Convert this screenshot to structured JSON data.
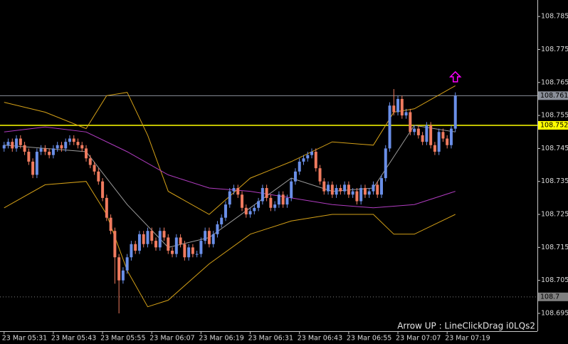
{
  "chart_data": {
    "type": "candlestick",
    "up_color": "#6a8fe8",
    "down_color": "#f07b5f",
    "xlim": [
      -1,
      130
    ],
    "ylim": [
      108.6896,
      108.79
    ],
    "yticks": [
      108.785,
      108.775,
      108.765,
      108.755,
      108.745,
      108.735,
      108.725,
      108.715,
      108.705,
      108.695
    ],
    "xticks": [
      {
        "value": 0,
        "label": "23 Mar 05:31"
      },
      {
        "value": 12,
        "label": "23 Mar 05:43"
      },
      {
        "value": 24,
        "label": "23 Mar 05:55"
      },
      {
        "value": 36,
        "label": "23 Mar 06:07"
      },
      {
        "value": 48,
        "label": "23 Mar 06:19"
      },
      {
        "value": 60,
        "label": "23 Mar 06:31"
      },
      {
        "value": 72,
        "label": "23 Mar 06:43"
      },
      {
        "value": 84,
        "label": "23 Mar 06:55"
      },
      {
        "value": 96,
        "label": "23 Mar 07:07"
      },
      {
        "value": 108,
        "label": "23 Mar 07:19"
      }
    ],
    "candles": [
      [
        108.745,
        108.747,
        108.744,
        108.746
      ],
      [
        108.746,
        108.748,
        108.745,
        108.747
      ],
      [
        108.747,
        108.748,
        108.744,
        108.745
      ],
      [
        108.745,
        108.749,
        108.744,
        108.748
      ],
      [
        108.748,
        108.749,
        108.745,
        108.746
      ],
      [
        108.746,
        108.747,
        108.743,
        108.744
      ],
      [
        108.744,
        108.745,
        108.74,
        108.741
      ],
      [
        108.741,
        108.742,
        108.736,
        108.737
      ],
      [
        108.737,
        108.745,
        108.736,
        108.744
      ],
      [
        108.744,
        108.746,
        108.743,
        108.745
      ],
      [
        108.745,
        108.746,
        108.743,
        108.744
      ],
      [
        108.744,
        108.745,
        108.742,
        108.743
      ],
      [
        108.743,
        108.746,
        108.742,
        108.745
      ],
      [
        108.745,
        108.747,
        108.744,
        108.746
      ],
      [
        108.746,
        108.747,
        108.744,
        108.745
      ],
      [
        108.745,
        108.748,
        108.744,
        108.747
      ],
      [
        108.747,
        108.749,
        108.746,
        108.748
      ],
      [
        108.748,
        108.749,
        108.746,
        108.747
      ],
      [
        108.747,
        108.748,
        108.745,
        108.746
      ],
      [
        108.746,
        108.747,
        108.744,
        108.745
      ],
      [
        108.745,
        108.746,
        108.741,
        108.742
      ],
      [
        108.742,
        108.743,
        108.739,
        108.74
      ],
      [
        108.74,
        108.741,
        108.737,
        108.738
      ],
      [
        108.738,
        108.739,
        108.734,
        108.735
      ],
      [
        108.735,
        108.736,
        108.729,
        108.73
      ],
      [
        108.73,
        108.731,
        108.723,
        108.724
      ],
      [
        108.724,
        108.725,
        108.719,
        108.72
      ],
      [
        108.72,
        108.721,
        108.704,
        108.712
      ],
      [
        108.712,
        108.713,
        108.695,
        108.705
      ],
      [
        108.705,
        108.709,
        108.704,
        108.708
      ],
      [
        108.708,
        108.713,
        108.707,
        108.712
      ],
      [
        108.712,
        108.717,
        108.711,
        108.716
      ],
      [
        108.716,
        108.717,
        108.713,
        108.714
      ],
      [
        108.714,
        108.72,
        108.713,
        108.719
      ],
      [
        108.719,
        108.72,
        108.715,
        108.716
      ],
      [
        108.716,
        108.721,
        108.715,
        108.72
      ],
      [
        108.72,
        108.721,
        108.716,
        108.717
      ],
      [
        108.717,
        108.718,
        108.714,
        108.715
      ],
      [
        108.715,
        108.721,
        108.714,
        108.72
      ],
      [
        108.72,
        108.721,
        108.717,
        108.718
      ],
      [
        108.718,
        108.719,
        108.713,
        108.714
      ],
      [
        108.714,
        108.715,
        108.712,
        108.713
      ],
      [
        108.713,
        108.719,
        108.712,
        108.718
      ],
      [
        108.718,
        108.719,
        108.715,
        108.716
      ],
      [
        108.716,
        108.717,
        108.711,
        108.712
      ],
      [
        108.712,
        108.716,
        108.711,
        108.715
      ],
      [
        108.715,
        108.716,
        108.712,
        108.713
      ],
      [
        108.713,
        108.714,
        108.712,
        108.713
      ],
      [
        108.713,
        108.718,
        108.712,
        108.717
      ],
      [
        108.717,
        108.721,
        108.716,
        108.72
      ],
      [
        108.72,
        108.721,
        108.715,
        108.716
      ],
      [
        108.716,
        108.72,
        108.715,
        108.719
      ],
      [
        108.719,
        108.723,
        108.718,
        108.722
      ],
      [
        108.722,
        108.725,
        108.721,
        108.724
      ],
      [
        108.724,
        108.729,
        108.723,
        108.728
      ],
      [
        108.728,
        108.733,
        108.727,
        108.732
      ],
      [
        108.732,
        108.734,
        108.731,
        108.733
      ],
      [
        108.733,
        108.734,
        108.73,
        108.731
      ],
      [
        108.731,
        108.732,
        108.726,
        108.727
      ],
      [
        108.727,
        108.728,
        108.724,
        108.725
      ],
      [
        108.725,
        108.727,
        108.724,
        108.726
      ],
      [
        108.726,
        108.728,
        108.725,
        108.727
      ],
      [
        108.727,
        108.73,
        108.726,
        108.729
      ],
      [
        108.729,
        108.734,
        108.728,
        108.733
      ],
      [
        108.733,
        108.734,
        108.729,
        108.73
      ],
      [
        108.73,
        108.731,
        108.726,
        108.727
      ],
      [
        108.727,
        108.729,
        108.726,
        108.728
      ],
      [
        108.728,
        108.732,
        108.727,
        108.731
      ],
      [
        108.731,
        108.732,
        108.727,
        108.728
      ],
      [
        108.728,
        108.731,
        108.727,
        108.73
      ],
      [
        108.73,
        108.736,
        108.729,
        108.735
      ],
      [
        108.735,
        108.739,
        108.734,
        108.738
      ],
      [
        108.738,
        108.742,
        108.737,
        108.741
      ],
      [
        108.741,
        108.743,
        108.74,
        108.742
      ],
      [
        108.742,
        108.744,
        108.741,
        108.743
      ],
      [
        108.743,
        108.745,
        108.742,
        108.744
      ],
      [
        108.744,
        108.745,
        108.738,
        108.739
      ],
      [
        108.739,
        108.74,
        108.734,
        108.735
      ],
      [
        108.735,
        108.736,
        108.731,
        108.732
      ],
      [
        108.732,
        108.735,
        108.731,
        108.734
      ],
      [
        108.734,
        108.735,
        108.73,
        108.731
      ],
      [
        108.731,
        108.734,
        108.73,
        108.733
      ],
      [
        108.733,
        108.734,
        108.731,
        108.732
      ],
      [
        108.732,
        108.735,
        108.731,
        108.734
      ],
      [
        108.734,
        108.735,
        108.73,
        108.731
      ],
      [
        108.731,
        108.733,
        108.73,
        108.732
      ],
      [
        108.732,
        108.733,
        108.728,
        108.729
      ],
      [
        108.729,
        108.734,
        108.728,
        108.733
      ],
      [
        108.733,
        108.734,
        108.73,
        108.731
      ],
      [
        108.731,
        108.733,
        108.73,
        108.732
      ],
      [
        108.732,
        108.735,
        108.731,
        108.734
      ],
      [
        108.734,
        108.735,
        108.73,
        108.731
      ],
      [
        108.731,
        108.737,
        108.73,
        108.736
      ],
      [
        108.736,
        108.746,
        108.735,
        108.745
      ],
      [
        108.745,
        108.759,
        108.744,
        108.758
      ],
      [
        108.758,
        108.763,
        108.755,
        108.756
      ],
      [
        108.756,
        108.761,
        108.755,
        108.76
      ],
      [
        108.76,
        108.761,
        108.754,
        108.755
      ],
      [
        108.755,
        108.757,
        108.754,
        108.756
      ],
      [
        108.756,
        108.757,
        108.749,
        108.75
      ],
      [
        108.75,
        108.752,
        108.749,
        108.751
      ],
      [
        108.751,
        108.752,
        108.748,
        108.749
      ],
      [
        108.749,
        108.75,
        108.746,
        108.747
      ],
      [
        108.747,
        108.753,
        108.746,
        108.752
      ],
      [
        108.752,
        108.753,
        108.745,
        108.746
      ],
      [
        108.746,
        108.747,
        108.743,
        108.744
      ],
      [
        108.744,
        108.751,
        108.743,
        108.75
      ],
      [
        108.75,
        108.751,
        108.747,
        108.748
      ],
      [
        108.748,
        108.749,
        108.745,
        108.746
      ],
      [
        108.746,
        108.752,
        108.745,
        108.751
      ],
      [
        108.751,
        108.762,
        108.75,
        108.761
      ]
    ],
    "series": [
      {
        "color": "#d4a017",
        "x": [
          0,
          10,
          20,
          25,
          30,
          35,
          40,
          50,
          60,
          70,
          80,
          90,
          95,
          100,
          110
        ],
        "values": [
          108.759,
          108.756,
          108.751,
          108.761,
          108.762,
          108.749,
          108.732,
          108.725,
          108.736,
          108.741,
          108.747,
          108.746,
          108.756,
          108.757,
          108.764
        ]
      },
      {
        "color": "#d4a017",
        "x": [
          0,
          10,
          20,
          25,
          30,
          35,
          40,
          50,
          60,
          70,
          80,
          90,
          95,
          100,
          110
        ],
        "values": [
          108.727,
          108.734,
          108.735,
          108.725,
          108.708,
          108.697,
          108.699,
          108.71,
          108.719,
          108.723,
          108.725,
          108.725,
          108.719,
          108.719,
          108.725
        ]
      },
      {
        "color": "#b03cc0",
        "x": [
          0,
          10,
          20,
          30,
          40,
          50,
          60,
          70,
          80,
          90,
          100,
          110
        ],
        "values": [
          108.75,
          108.7515,
          108.75,
          108.744,
          108.737,
          108.733,
          108.732,
          108.73,
          108.728,
          108.727,
          108.728,
          108.732
        ]
      },
      {
        "color": "#9a9a9a",
        "x": [
          0,
          10,
          20,
          30,
          40,
          50,
          60,
          70,
          80,
          90,
          100,
          110
        ],
        "values": [
          108.746,
          108.745,
          108.744,
          108.728,
          108.715,
          108.718,
          108.727,
          108.736,
          108.732,
          108.733,
          108.752,
          108.75
        ]
      }
    ],
    "hlines": [
      {
        "value": 108.761,
        "color": "#8a8f99"
      },
      {
        "value": 108.752,
        "color": "#ffff00"
      },
      {
        "value": 108.7,
        "color": "#7f7f7f"
      }
    ],
    "arrow": {
      "x": 110,
      "y": 108.7665,
      "color": "#ff00ff"
    },
    "annotation": "Arrow UP : LineClickDrag i0LQs2"
  }
}
